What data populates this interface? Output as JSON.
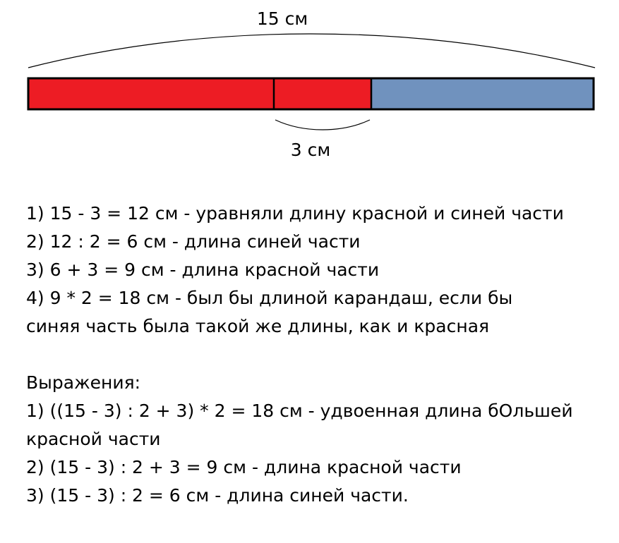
{
  "diagram": {
    "total_label": "15 см",
    "difference_label": "3 см",
    "colors": {
      "red": "#ED1C24",
      "blue": "#7092BE",
      "outline": "#000000"
    }
  },
  "solution_steps": [
    "1) 15 - 3 = 12 см - уравняли длину красной и синей части",
    "2) 12 : 2 = 6 см - длина синей части",
    "3) 6 + 3 = 9 см - длина красной части",
    "4) 9 * 2 = 18 см - был бы длиной карандаш, если бы",
    "синяя часть была такой же длины, как и красная"
  ],
  "expressions_heading": "Выражения:",
  "expressions": [
    "1) ((15 - 3) : 2 + 3) * 2 = 18 см - удвоенная длина бОльшей",
    "красной части",
    "2) (15 - 3) : 2 + 3 = 9 см - длина красной части",
    "3) (15 - 3) : 2 = 6 см - длина синей части."
  ]
}
